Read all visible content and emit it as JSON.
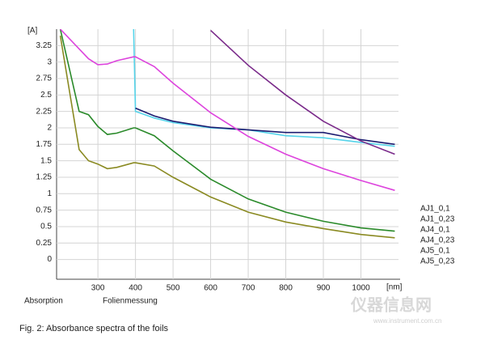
{
  "chart_data": {
    "type": "line",
    "y_label": "[A]",
    "x_label": "[nm]",
    "bottom_left_labels": [
      "Absorption",
      "Folienmessung"
    ],
    "caption": "Fig. 2: Absorbance spectra of the foils",
    "watermark": [
      "仪器信息网",
      "www.instrument.com.cn"
    ],
    "x": [
      200,
      250,
      275,
      300,
      325,
      350,
      395,
      400,
      450,
      500,
      600,
      700,
      800,
      900,
      1000,
      1090
    ],
    "xlim": [
      190,
      1100
    ],
    "xticks": [
      300,
      400,
      500,
      600,
      700,
      800,
      900,
      1000
    ],
    "ylim": [
      -0.3,
      3.5
    ],
    "yticks": [
      0,
      0.25,
      0.5,
      0.75,
      1,
      1.25,
      1.5,
      1.75,
      2,
      2.25,
      2.5,
      2.75,
      3,
      3.25
    ],
    "grid": true,
    "series": [
      {
        "name": "AJ1_0,1",
        "color": "#55d4ea",
        "values": [
          null,
          null,
          null,
          null,
          null,
          null,
          3.5,
          2.25,
          2.15,
          2.08,
          2.0,
          1.97,
          1.88,
          1.85,
          1.78,
          1.72
        ]
      },
      {
        "name": "AJ1_0,23",
        "color": "#1c1c70",
        "values": [
          null,
          null,
          null,
          null,
          null,
          null,
          null,
          2.3,
          2.18,
          2.1,
          2.01,
          1.97,
          1.93,
          1.93,
          1.82,
          1.75
        ]
      },
      {
        "name": "AJ4_0,1",
        "color": "#8a8a22",
        "values": [
          3.4,
          1.67,
          1.5,
          1.45,
          1.38,
          1.4,
          1.47,
          1.47,
          1.42,
          1.25,
          0.95,
          0.72,
          0.57,
          0.47,
          0.38,
          0.33
        ]
      },
      {
        "name": "AJ4_0,23",
        "color": "#2a8a2a",
        "values": [
          3.5,
          2.25,
          2.2,
          2.02,
          1.9,
          1.92,
          2.0,
          2.0,
          1.88,
          1.65,
          1.22,
          0.92,
          0.72,
          0.58,
          0.48,
          0.43
        ]
      },
      {
        "name": "AJ5_0,1",
        "color": "#dd44dd",
        "values": [
          3.5,
          3.2,
          3.05,
          2.96,
          2.97,
          3.02,
          3.08,
          3.08,
          2.93,
          2.68,
          2.23,
          1.87,
          1.6,
          1.38,
          1.2,
          1.05
        ]
      },
      {
        "name": "AJ5_0,23",
        "color": "#7a2a8a",
        "values": [
          null,
          null,
          null,
          null,
          null,
          null,
          null,
          null,
          null,
          null,
          3.48,
          2.95,
          2.5,
          2.1,
          1.8,
          1.6
        ]
      }
    ]
  }
}
